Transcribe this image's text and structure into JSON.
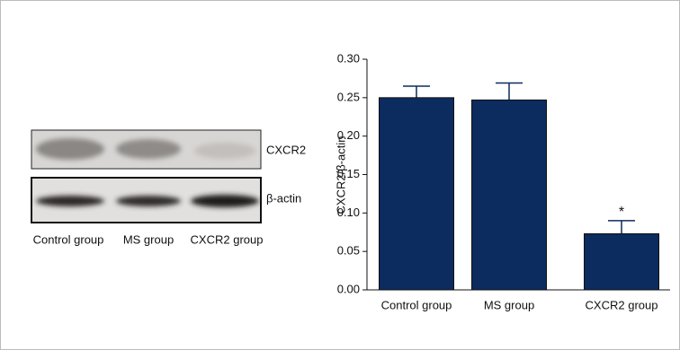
{
  "chart_data": {
    "type": "bar",
    "ylabel": "CXCR2/β-actin",
    "categories": [
      "Control group",
      "MS group",
      "CXCR2 group"
    ],
    "values": [
      0.25,
      0.247,
      0.073
    ],
    "errors": [
      0.015,
      0.022,
      0.017
    ],
    "color": "#0c2b5e",
    "ylim": [
      0,
      0.3
    ],
    "yticks": [
      {
        "value": 0,
        "label": "0.00"
      },
      {
        "value": 0.05,
        "label": "0.05"
      },
      {
        "value": 0.1,
        "label": "0.10"
      },
      {
        "value": 0.15,
        "label": "0.15"
      },
      {
        "value": 0.2,
        "label": "0.20"
      },
      {
        "value": 0.25,
        "label": "0.25"
      },
      {
        "value": 0.3,
        "label": "0.30"
      }
    ],
    "annotations": [
      {
        "text": "*",
        "category": 2
      }
    ]
  },
  "blot": {
    "bands": [
      "CXCR2",
      "β-actin"
    ],
    "lanes": [
      "Control group",
      "MS group",
      "CXCR2 group"
    ]
  }
}
